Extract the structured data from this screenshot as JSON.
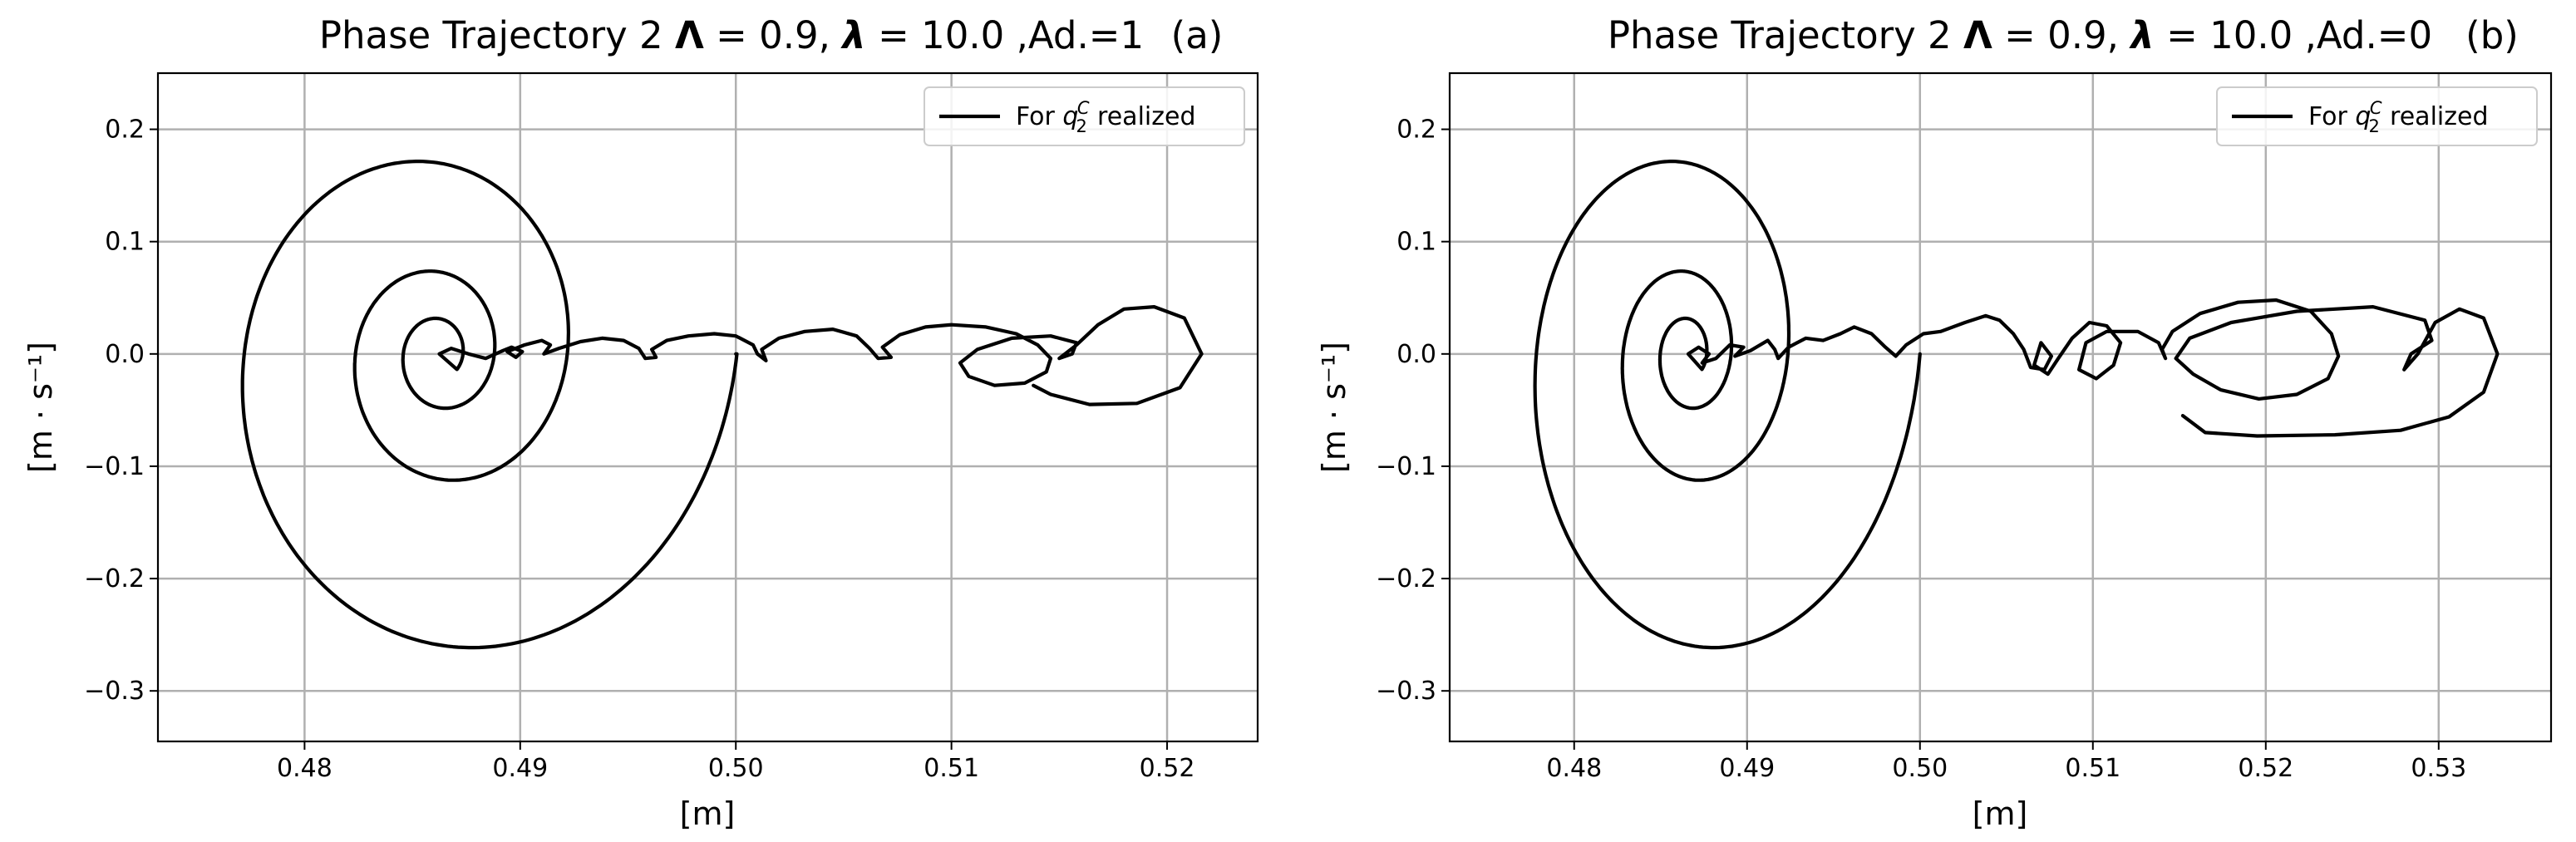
{
  "chart_data": [
    {
      "type": "line",
      "panel": "(a)",
      "title": "Phase Trajectory 2 Λ = 0.9, λ = 10.0 ,Ad.=1",
      "title_parts": {
        "base": "Phase Trajectory 2 ",
        "Lambda": "Λ",
        "Lambda_val": " = 0.9, ",
        "lambda": "λ",
        "lambda_val": " = 10.0 ,Ad.=1"
      },
      "xlabel": "[m]",
      "ylabel": "[m · s⁻¹]",
      "xlim": [
        0.4732,
        0.5242
      ],
      "ylim": [
        -0.345,
        0.25
      ],
      "xticks": [
        0.48,
        0.49,
        0.5,
        0.51,
        0.52
      ],
      "xtick_labels": [
        "0.48",
        "0.49",
        "0.50",
        "0.51",
        "0.52"
      ],
      "yticks": [
        -0.3,
        -0.2,
        -0.1,
        0.0,
        0.1,
        0.2
      ],
      "ytick_labels": [
        "−0.3",
        "−0.2",
        "−0.1",
        "0.0",
        "0.1",
        "0.2"
      ],
      "grid": true,
      "legend": {
        "entries": [
          "For q₂ᶜ realized"
        ],
        "label_prefix": "For ",
        "label_sym": "q",
        "label_sub": "2",
        "label_sup": "C",
        "label_suffix": " realized",
        "position": "top-right"
      },
      "series": [
        {
          "name": "For q2C realized",
          "spiral": {
            "center_x": 0.48625,
            "x0": 0.5,
            "Ax0": 0.0138,
            "Ay0": 0.32,
            "decay": 0.43,
            "turns": 3.1
          },
          "points": [
            [
              0.48625,
              0.0
            ],
            [
              0.4868,
              0.005
            ],
            [
              0.4876,
              0.0
            ],
            [
              0.4884,
              -0.004
            ],
            [
              0.4892,
              0.003
            ],
            [
              0.4896,
              0.006
            ],
            [
              0.4901,
              0.002
            ],
            [
              0.4898,
              -0.003
            ],
            [
              0.4894,
              0.002
            ],
            [
              0.4902,
              0.008
            ],
            [
              0.491,
              0.012
            ],
            [
              0.4914,
              0.008
            ],
            [
              0.4911,
              0.0
            ],
            [
              0.4918,
              0.005
            ],
            [
              0.4928,
              0.011
            ],
            [
              0.4938,
              0.014
            ],
            [
              0.4948,
              0.012
            ],
            [
              0.4955,
              0.005
            ],
            [
              0.4958,
              -0.004
            ],
            [
              0.4963,
              -0.003
            ],
            [
              0.4961,
              0.004
            ],
            [
              0.4968,
              0.012
            ],
            [
              0.4978,
              0.016
            ],
            [
              0.499,
              0.018
            ],
            [
              0.5,
              0.016
            ],
            [
              0.5008,
              0.008
            ],
            [
              0.501,
              0.0
            ],
            [
              0.5014,
              -0.006
            ],
            [
              0.5012,
              0.004
            ],
            [
              0.502,
              0.014
            ],
            [
              0.5032,
              0.02
            ],
            [
              0.5045,
              0.022
            ],
            [
              0.5056,
              0.016
            ],
            [
              0.5062,
              0.005
            ],
            [
              0.5066,
              -0.004
            ],
            [
              0.5072,
              -0.003
            ],
            [
              0.5068,
              0.006
            ],
            [
              0.5076,
              0.017
            ],
            [
              0.5088,
              0.024
            ],
            [
              0.51,
              0.026
            ],
            [
              0.5116,
              0.024
            ],
            [
              0.513,
              0.018
            ],
            [
              0.514,
              0.008
            ],
            [
              0.5146,
              -0.004
            ],
            [
              0.5144,
              -0.016
            ],
            [
              0.5134,
              -0.026
            ],
            [
              0.512,
              -0.028
            ],
            [
              0.5108,
              -0.02
            ],
            [
              0.5104,
              -0.008
            ],
            [
              0.5112,
              0.004
            ],
            [
              0.5128,
              0.014
            ],
            [
              0.5146,
              0.016
            ],
            [
              0.5158,
              0.01
            ],
            [
              0.5156,
              0.0
            ],
            [
              0.515,
              -0.004
            ],
            [
              0.5158,
              0.008
            ],
            [
              0.5168,
              0.026
            ],
            [
              0.518,
              0.04
            ],
            [
              0.5194,
              0.042
            ],
            [
              0.5208,
              0.032
            ],
            [
              0.5216,
              0.0
            ],
            [
              0.5206,
              -0.03
            ],
            [
              0.5186,
              -0.044
            ],
            [
              0.5164,
              -0.045
            ],
            [
              0.5146,
              -0.036
            ],
            [
              0.5138,
              -0.028
            ]
          ]
        }
      ]
    },
    {
      "type": "line",
      "panel": "(b)",
      "title": "Phase Trajectory 2 Λ = 0.9, λ = 10.0 ,Ad.=0",
      "title_parts": {
        "base": "Phase Trajectory 2 ",
        "Lambda": "Λ",
        "Lambda_val": " = 0.9, ",
        "lambda": "λ",
        "lambda_val": " = 10.0 ,Ad.=0"
      },
      "xlabel": "[m]",
      "ylabel": "[m · s⁻¹]",
      "xlim": [
        0.4728,
        0.5365
      ],
      "ylim": [
        -0.345,
        0.25
      ],
      "xticks": [
        0.48,
        0.49,
        0.5,
        0.51,
        0.52,
        0.53
      ],
      "xtick_labels": [
        "0.48",
        "0.49",
        "0.50",
        "0.51",
        "0.52",
        "0.53"
      ],
      "yticks": [
        -0.3,
        -0.2,
        -0.1,
        0.0,
        0.1,
        0.2
      ],
      "ytick_labels": [
        "−0.3",
        "−0.2",
        "−0.1",
        "0.0",
        "0.1",
        "0.2"
      ],
      "grid": true,
      "legend": {
        "entries": [
          "For q₂ᶜ realized"
        ],
        "label_prefix": "For ",
        "label_sym": "q",
        "label_sub": "2",
        "label_sup": "C",
        "label_suffix": " realized",
        "position": "top-right"
      },
      "series": [
        {
          "name": "For q2C realized",
          "spiral": {
            "center_x": 0.4866,
            "x0": 0.5,
            "Ax0": 0.0134,
            "Ay0": 0.32,
            "decay": 0.43,
            "turns": 3.1
          },
          "points": [
            [
              0.4866,
              0.0
            ],
            [
              0.4872,
              0.006
            ],
            [
              0.4878,
              0.0
            ],
            [
              0.4874,
              -0.008
            ],
            [
              0.4882,
              -0.004
            ],
            [
              0.489,
              0.008
            ],
            [
              0.4898,
              0.006
            ],
            [
              0.4893,
              -0.002
            ],
            [
              0.4902,
              0.003
            ],
            [
              0.4912,
              0.012
            ],
            [
              0.4916,
              0.004
            ],
            [
              0.4918,
              -0.004
            ],
            [
              0.4924,
              0.006
            ],
            [
              0.4934,
              0.014
            ],
            [
              0.4944,
              0.012
            ],
            [
              0.4954,
              0.018
            ],
            [
              0.4962,
              0.024
            ],
            [
              0.4972,
              0.018
            ],
            [
              0.498,
              0.006
            ],
            [
              0.4986,
              -0.002
            ],
            [
              0.4992,
              0.008
            ],
            [
              0.5002,
              0.018
            ],
            [
              0.5012,
              0.02
            ],
            [
              0.5026,
              0.028
            ],
            [
              0.5038,
              0.034
            ],
            [
              0.5046,
              0.03
            ],
            [
              0.5054,
              0.018
            ],
            [
              0.506,
              0.004
            ],
            [
              0.5064,
              -0.012
            ],
            [
              0.5072,
              -0.014
            ],
            [
              0.5076,
              -0.002
            ],
            [
              0.507,
              0.01
            ],
            [
              0.5066,
              -0.01
            ],
            [
              0.5074,
              -0.018
            ],
            [
              0.508,
              -0.004
            ],
            [
              0.5088,
              0.014
            ],
            [
              0.5098,
              0.028
            ],
            [
              0.5108,
              0.025
            ],
            [
              0.5116,
              0.01
            ],
            [
              0.5112,
              -0.01
            ],
            [
              0.5102,
              -0.022
            ],
            [
              0.5092,
              -0.014
            ],
            [
              0.5096,
              0.01
            ],
            [
              0.5108,
              0.02
            ],
            [
              0.5126,
              0.02
            ],
            [
              0.5138,
              0.01
            ],
            [
              0.5142,
              -0.004
            ],
            [
              0.514,
              0.004
            ],
            [
              0.5146,
              0.02
            ],
            [
              0.5162,
              0.036
            ],
            [
              0.5184,
              0.046
            ],
            [
              0.5206,
              0.048
            ],
            [
              0.5226,
              0.038
            ],
            [
              0.5238,
              0.018
            ],
            [
              0.5242,
              -0.002
            ],
            [
              0.5236,
              -0.022
            ],
            [
              0.5218,
              -0.036
            ],
            [
              0.5196,
              -0.04
            ],
            [
              0.5174,
              -0.032
            ],
            [
              0.5158,
              -0.018
            ],
            [
              0.5148,
              -0.004
            ],
            [
              0.5156,
              0.014
            ],
            [
              0.518,
              0.028
            ],
            [
              0.5218,
              0.038
            ],
            [
              0.5262,
              0.042
            ],
            [
              0.5292,
              0.03
            ],
            [
              0.5296,
              0.012
            ],
            [
              0.5284,
              0.0
            ],
            [
              0.528,
              -0.014
            ],
            [
              0.5288,
              0.0
            ],
            [
              0.5298,
              0.028
            ],
            [
              0.5312,
              0.04
            ],
            [
              0.5326,
              0.032
            ],
            [
              0.5334,
              0.0
            ],
            [
              0.5326,
              -0.034
            ],
            [
              0.5306,
              -0.056
            ],
            [
              0.5278,
              -0.068
            ],
            [
              0.524,
              -0.072
            ],
            [
              0.5195,
              -0.073
            ],
            [
              0.5165,
              -0.07
            ],
            [
              0.5152,
              -0.055
            ]
          ]
        }
      ]
    }
  ]
}
